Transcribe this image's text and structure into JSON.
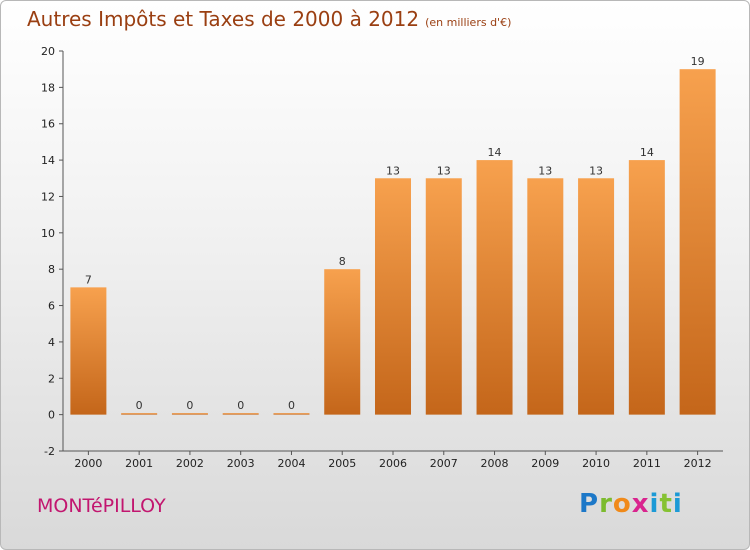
{
  "header": {
    "title": "Autres Impôts et Taxes de 2000 à 2012",
    "subtitle": "(en milliers d'€)"
  },
  "footer": {
    "commune": "MONTéPILLOY",
    "logo": [
      "P",
      "r",
      "o",
      "x",
      "i",
      "t",
      "i"
    ]
  },
  "colors": {
    "bar_top": "#f7a14e",
    "bar_bottom": "#c4661a",
    "title": "#9a3f12",
    "commune": "#c2166f"
  },
  "chart_data": {
    "type": "bar",
    "title": "Autres Impôts et Taxes de 2000 à 2012",
    "subtitle": "(en milliers d'€)",
    "categories": [
      "2000",
      "2001",
      "2002",
      "2003",
      "2004",
      "2005",
      "2006",
      "2007",
      "2008",
      "2009",
      "2010",
      "2011",
      "2012"
    ],
    "values": [
      7,
      0,
      0,
      0,
      0,
      8,
      13,
      13,
      14,
      13,
      13,
      14,
      19
    ],
    "data_labels": [
      "7",
      "0",
      "0",
      "0",
      "0",
      "8",
      "13",
      "13",
      "14",
      "13",
      "13",
      "14",
      "19"
    ],
    "ylim": [
      -2,
      20
    ],
    "yticks": [
      -2,
      0,
      2,
      4,
      6,
      8,
      10,
      12,
      14,
      16,
      18,
      20
    ],
    "ytick_labels": [
      "-2",
      "0",
      "2",
      "4",
      "6",
      "8",
      "10",
      "12",
      "14",
      "16",
      "18",
      "20"
    ],
    "grid": false,
    "legend": "none"
  }
}
